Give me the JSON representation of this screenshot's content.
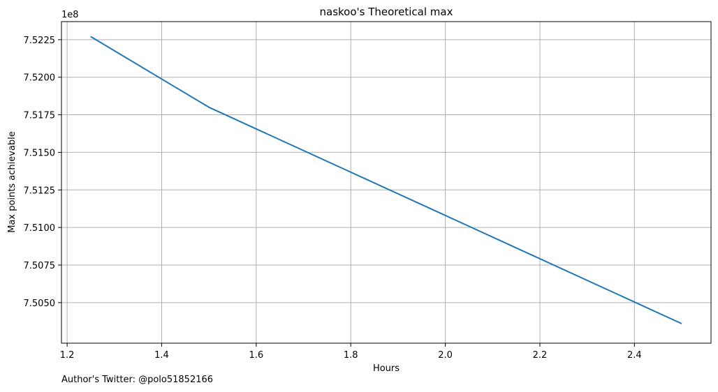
{
  "chart_data": {
    "type": "line",
    "title": "naskoo's Theoretical max",
    "xlabel": "Hours",
    "ylabel": "Max points achievable",
    "y_offset_label": "1e8",
    "y_scale": 100000000,
    "xlim": [
      1.188,
      2.562
    ],
    "ylim": [
      7.5023,
      7.5237
    ],
    "x_ticks": [
      1.2,
      1.4,
      1.6,
      1.8,
      2.0,
      2.2,
      2.4
    ],
    "x_tick_labels": [
      "1.2",
      "1.4",
      "1.6",
      "1.8",
      "2.0",
      "2.2",
      "2.4"
    ],
    "y_ticks": [
      7.505,
      7.5075,
      7.51,
      7.5125,
      7.515,
      7.5175,
      7.52,
      7.5225
    ],
    "y_tick_labels": [
      "7.5050",
      "7.5075",
      "7.5100",
      "7.5125",
      "7.5150",
      "7.5175",
      "7.5200",
      "7.5225"
    ],
    "grid": true,
    "series": [
      {
        "color": "#1f77b4",
        "x": [
          1.25,
          1.5,
          2.5
        ],
        "y": [
          7.5227,
          7.518,
          7.5036
        ]
      }
    ]
  },
  "footer": {
    "author_text": "Author's Twitter: @polo51852166"
  }
}
